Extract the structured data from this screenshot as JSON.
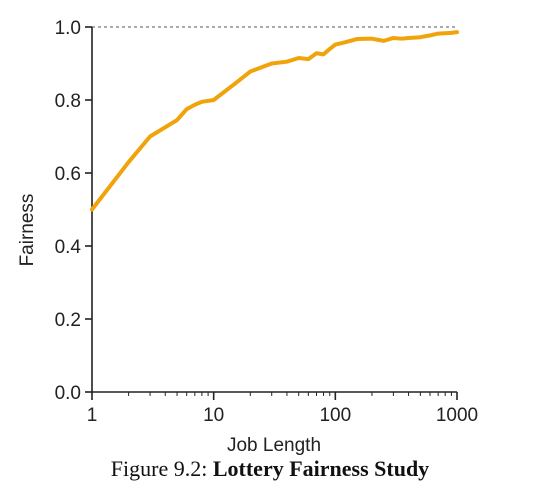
{
  "chart_data": {
    "type": "line",
    "xlabel": "Job Length",
    "ylabel": "Fairness",
    "x_scale": "log",
    "xlim": [
      1,
      1000
    ],
    "ylim": [
      0,
      1
    ],
    "x_ticks": [
      {
        "value": 1,
        "label": "1"
      },
      {
        "value": 10,
        "label": "10"
      },
      {
        "value": 100,
        "label": "100"
      },
      {
        "value": 1000,
        "label": "1000"
      }
    ],
    "y_ticks": [
      {
        "value": 0,
        "label": "0.0"
      },
      {
        "value": 0.2,
        "label": "0.2"
      },
      {
        "value": 0.4,
        "label": "0.4"
      },
      {
        "value": 0.6,
        "label": "0.6"
      },
      {
        "value": 0.8,
        "label": "0.8"
      },
      {
        "value": 1,
        "label": "1.0"
      }
    ],
    "reference_line": {
      "y": 1.0,
      "style": "dashed"
    },
    "series": [
      {
        "color": "#F0A30A",
        "x": [
          1,
          2,
          3,
          5,
          6,
          7,
          8,
          10,
          15,
          20,
          30,
          40,
          50,
          60,
          70,
          80,
          90,
          100,
          120,
          150,
          200,
          250,
          300,
          350,
          400,
          500,
          600,
          700,
          800,
          900,
          1000
        ],
        "y": [
          0.5,
          0.63,
          0.7,
          0.745,
          0.775,
          0.787,
          0.795,
          0.8,
          0.845,
          0.878,
          0.9,
          0.905,
          0.915,
          0.912,
          0.928,
          0.925,
          0.94,
          0.952,
          0.958,
          0.967,
          0.968,
          0.962,
          0.97,
          0.968,
          0.97,
          0.972,
          0.977,
          0.982,
          0.983,
          0.984,
          0.986
        ]
      }
    ]
  },
  "caption": {
    "prefix": "Figure 9.2: ",
    "title": "Lottery Fairness Study"
  }
}
